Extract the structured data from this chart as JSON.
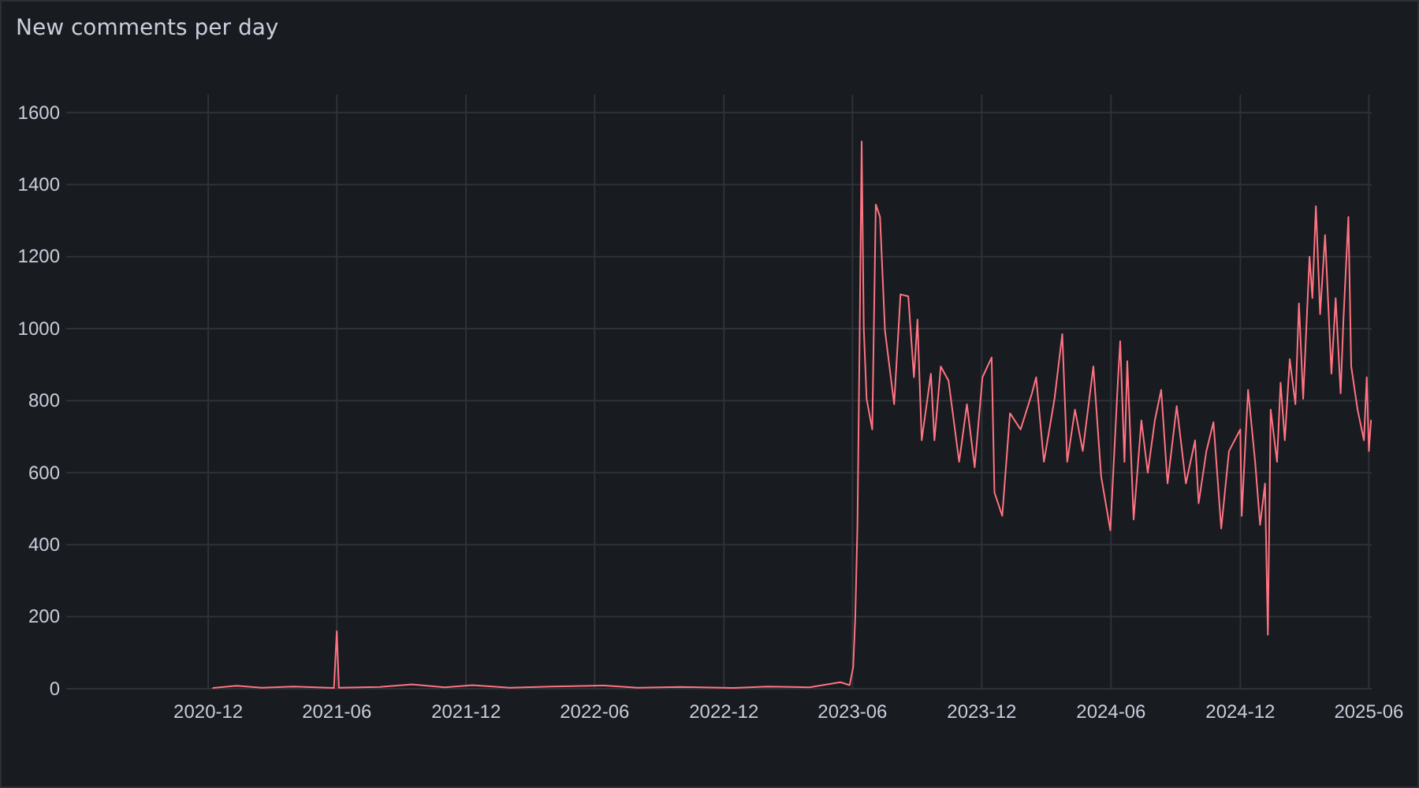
{
  "chart_data": {
    "type": "line",
    "title": "New comments per day",
    "xlim": [
      "2020-05-14",
      "2025-06-05"
    ],
    "xticks": [
      {
        "value": "2020-12-01",
        "label": "2020-12"
      },
      {
        "value": "2021-06-01",
        "label": "2021-06"
      },
      {
        "value": "2021-12-01",
        "label": "2021-12"
      },
      {
        "value": "2022-06-01",
        "label": "2022-06"
      },
      {
        "value": "2022-12-01",
        "label": "2022-12"
      },
      {
        "value": "2023-06-01",
        "label": "2023-06"
      },
      {
        "value": "2023-12-01",
        "label": "2023-12"
      },
      {
        "value": "2024-06-01",
        "label": "2024-06"
      },
      {
        "value": "2024-12-01",
        "label": "2024-12"
      },
      {
        "value": "2025-06-01",
        "label": "2025-06"
      }
    ],
    "ylim": [
      0,
      1650
    ],
    "yticks": [
      0,
      200,
      400,
      600,
      800,
      1000,
      1200,
      1400,
      1600
    ],
    "grid": true,
    "series": [
      {
        "color": "#ff7383",
        "x": [
          "2020-12-08",
          "2021-01-10",
          "2021-02-15",
          "2021-04-01",
          "2021-05-28",
          "2021-06-01",
          "2021-06-04",
          "2021-08-01",
          "2021-09-15",
          "2021-11-01",
          "2021-12-10",
          "2022-02-01",
          "2022-04-01",
          "2022-06-15",
          "2022-08-01",
          "2022-10-01",
          "2022-12-15",
          "2023-02-01",
          "2023-04-01",
          "2023-05-15",
          "2023-05-28",
          "2023-06-02",
          "2023-06-05",
          "2023-06-08",
          "2023-06-11",
          "2023-06-14",
          "2023-06-17",
          "2023-06-21",
          "2023-06-29",
          "2023-07-04",
          "2023-07-10",
          "2023-07-17",
          "2023-07-30",
          "2023-08-08",
          "2023-08-19",
          "2023-08-27",
          "2023-09-01",
          "2023-09-07",
          "2023-09-20",
          "2023-09-25",
          "2023-10-04",
          "2023-10-15",
          "2023-10-30",
          "2023-11-10",
          "2023-11-21",
          "2023-12-02",
          "2023-12-15",
          "2023-12-19",
          "2023-12-30",
          "2024-01-10",
          "2024-01-25",
          "2024-02-10",
          "2024-02-16",
          "2024-02-27",
          "2024-03-13",
          "2024-03-24",
          "2024-03-31",
          "2024-04-11",
          "2024-04-22",
          "2024-05-07",
          "2024-05-18",
          "2024-05-31",
          "2024-06-11",
          "2024-06-14",
          "2024-06-20",
          "2024-06-24",
          "2024-07-03",
          "2024-07-14",
          "2024-07-23",
          "2024-08-02",
          "2024-08-11",
          "2024-08-20",
          "2024-09-02",
          "2024-09-15",
          "2024-09-28",
          "2024-10-03",
          "2024-10-14",
          "2024-10-24",
          "2024-11-04",
          "2024-11-15",
          "2024-12-01",
          "2024-12-03",
          "2024-12-12",
          "2024-12-22",
          "2024-12-29",
          "2025-01-05",
          "2025-01-09",
          "2025-01-13",
          "2025-01-22",
          "2025-01-27",
          "2025-02-02",
          "2025-02-09",
          "2025-02-17",
          "2025-02-22",
          "2025-02-28",
          "2025-03-09",
          "2025-03-13",
          "2025-03-18",
          "2025-03-24",
          "2025-03-31",
          "2025-04-09",
          "2025-04-15",
          "2025-04-22",
          "2025-04-26",
          "2025-05-03",
          "2025-05-07",
          "2025-05-16",
          "2025-05-25",
          "2025-05-29",
          "2025-06-01",
          "2025-06-04"
        ],
        "values": [
          2,
          8,
          3,
          6,
          2,
          160,
          3,
          5,
          12,
          4,
          10,
          3,
          6,
          9,
          3,
          5,
          2,
          6,
          4,
          18,
          10,
          60,
          200,
          450,
          950,
          1520,
          1000,
          805,
          720,
          1345,
          1310,
          995,
          790,
          1095,
          1090,
          865,
          1025,
          690,
          875,
          690,
          895,
          855,
          630,
          790,
          615,
          865,
          920,
          545,
          480,
          765,
          720,
          820,
          865,
          630,
          805,
          985,
          630,
          775,
          660,
          895,
          590,
          440,
          865,
          965,
          630,
          910,
          470,
          745,
          600,
          745,
          830,
          570,
          785,
          570,
          690,
          515,
          660,
          740,
          445,
          660,
          720,
          480,
          830,
          630,
          455,
          570,
          150,
          775,
          630,
          850,
          690,
          915,
          790,
          1070,
          805,
          1200,
          1085,
          1340,
          1040,
          1260,
          875,
          1085,
          820,
          1025,
          1310,
          895,
          775,
          690,
          865,
          660,
          745
        ]
      }
    ]
  }
}
